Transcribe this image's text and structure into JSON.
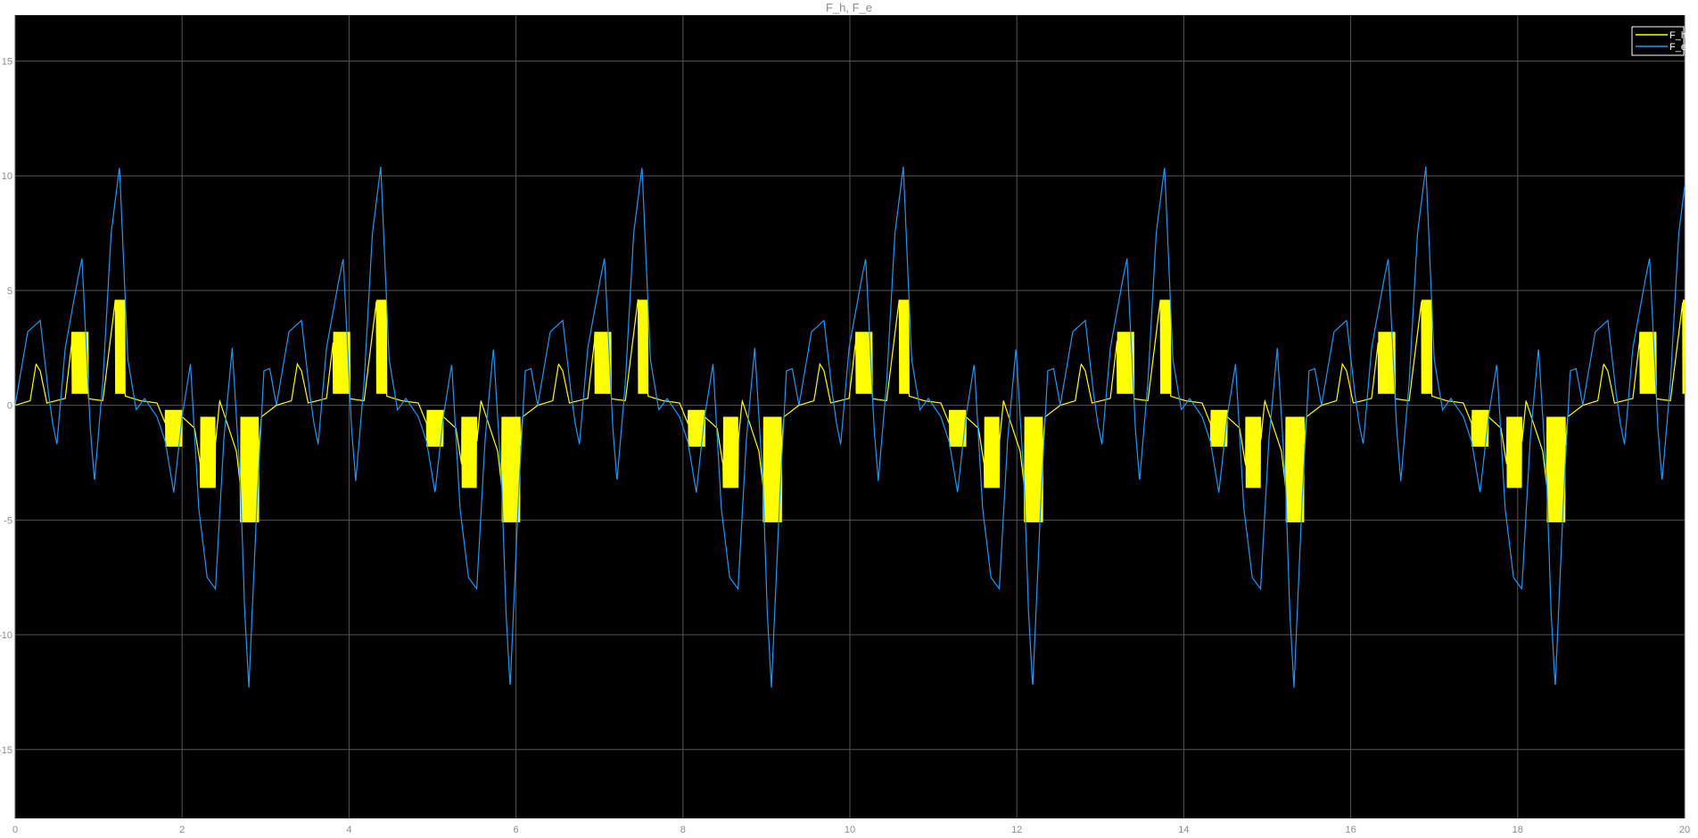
{
  "chart_data": {
    "type": "line",
    "title": "F_h, F_e",
    "xlabel": "",
    "ylabel": "",
    "xlim": [
      0,
      20
    ],
    "ylim": [
      -18,
      17
    ],
    "xticks": [
      0,
      2,
      4,
      6,
      8,
      10,
      12,
      14,
      16,
      18,
      20
    ],
    "yticks": [
      -15,
      -10,
      -5,
      0,
      5,
      10,
      15
    ],
    "grid": true,
    "background": "#000000",
    "legend_placement": "top-right",
    "period": 3.13,
    "series": [
      {
        "name": "F_h",
        "color": "#ffff00",
        "description": "periodic force with dense high-frequency bursts",
        "period_points": [
          [
            0.0,
            0.0
          ],
          [
            0.18,
            0.2
          ],
          [
            0.25,
            1.8
          ],
          [
            0.3,
            1.5
          ],
          [
            0.38,
            0.1
          ],
          [
            0.6,
            0.3
          ],
          [
            0.68,
            2.8
          ],
          [
            0.75,
            3.2
          ],
          [
            0.85,
            0.3
          ],
          [
            1.05,
            0.2
          ],
          [
            1.2,
            4.6
          ],
          [
            1.27,
            4.3
          ],
          [
            1.32,
            0.4
          ],
          [
            1.5,
            0.2
          ],
          [
            1.7,
            0.1
          ],
          [
            1.8,
            -0.8
          ],
          [
            1.9,
            -1.8
          ],
          [
            2.0,
            -0.5
          ],
          [
            2.15,
            -1.0
          ],
          [
            2.25,
            -3.3
          ],
          [
            2.35,
            -3.5
          ],
          [
            2.45,
            0.2
          ],
          [
            2.65,
            -2.0
          ],
          [
            2.75,
            -5.1
          ],
          [
            2.85,
            -5.0
          ],
          [
            2.95,
            -0.5
          ],
          [
            3.13,
            0.0
          ]
        ],
        "burst_windows": [
          {
            "start": 0.68,
            "end": 0.88,
            "min": 0.5,
            "max": 3.2
          },
          {
            "start": 1.2,
            "end": 1.32,
            "min": 0.5,
            "max": 4.6
          },
          {
            "start": 1.8,
            "end": 2.0,
            "min": -1.8,
            "max": -0.2
          },
          {
            "start": 2.22,
            "end": 2.4,
            "min": -3.6,
            "max": -0.5
          },
          {
            "start": 2.7,
            "end": 2.92,
            "min": -5.1,
            "max": -0.5
          }
        ]
      },
      {
        "name": "F_e",
        "color": "#2196f3",
        "description": "periodic smooth force with large oscillations",
        "period_points": [
          [
            0.0,
            0.0
          ],
          [
            0.15,
            3.2
          ],
          [
            0.3,
            3.7
          ],
          [
            0.4,
            0.5
          ],
          [
            0.45,
            -0.8
          ],
          [
            0.5,
            -1.7
          ],
          [
            0.6,
            2.5
          ],
          [
            0.75,
            5.5
          ],
          [
            0.8,
            6.4
          ],
          [
            0.9,
            -1.0
          ],
          [
            0.95,
            -3.3
          ],
          [
            1.05,
            1.0
          ],
          [
            1.15,
            7.5
          ],
          [
            1.25,
            10.4
          ],
          [
            1.35,
            2.0
          ],
          [
            1.45,
            -0.2
          ],
          [
            1.55,
            0.3
          ],
          [
            1.7,
            -0.5
          ],
          [
            1.8,
            -1.6
          ],
          [
            1.9,
            -3.8
          ],
          [
            2.0,
            -0.5
          ],
          [
            2.1,
            1.8
          ],
          [
            2.2,
            -4.5
          ],
          [
            2.3,
            -7.5
          ],
          [
            2.4,
            -8.0
          ],
          [
            2.5,
            -1.5
          ],
          [
            2.6,
            2.5
          ],
          [
            2.7,
            -3.5
          ],
          [
            2.75,
            -9.0
          ],
          [
            2.8,
            -12.3
          ],
          [
            2.9,
            -4.0
          ],
          [
            2.98,
            1.5
          ],
          [
            3.05,
            1.6
          ],
          [
            3.13,
            0.0
          ]
        ]
      }
    ]
  }
}
